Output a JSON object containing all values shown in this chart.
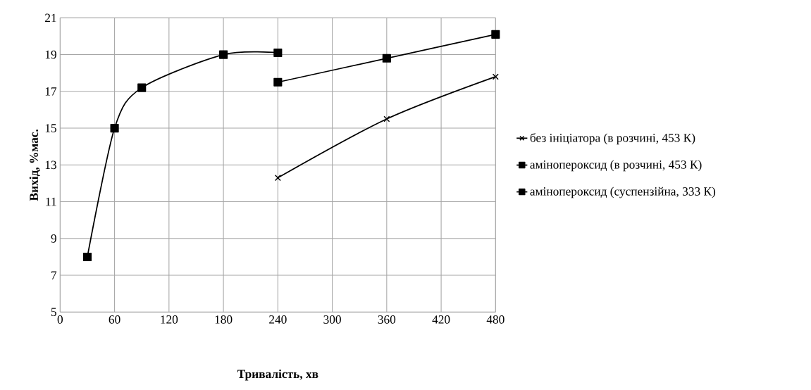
{
  "chart_data": {
    "type": "line",
    "xlabel": "Тривалість, хв",
    "ylabel": "Вихід, %мас.",
    "xlim": [
      0,
      480
    ],
    "xticks": [
      0,
      60,
      120,
      180,
      240,
      300,
      360,
      420,
      480
    ],
    "ylim": [
      5,
      21
    ],
    "yticks": [
      5,
      7,
      9,
      11,
      13,
      15,
      17,
      19,
      21
    ],
    "grid": true,
    "legend": "right",
    "series": [
      {
        "name": "без ініціатора (в розчині, 453 К)",
        "color": "#000000",
        "marker": "cross",
        "x": [
          240,
          360,
          480
        ],
        "values": [
          12.3,
          15.5,
          17.8
        ]
      },
      {
        "name": "амінопероксид (в розчині, 453 К)",
        "color": "#000000",
        "marker": "square",
        "x": [
          240,
          360,
          480
        ],
        "values": [
          17.5,
          18.8,
          20.1
        ]
      },
      {
        "name": "амінопероксид (суспензійна, 333 К)",
        "color": "#000000",
        "marker": "square",
        "x": [
          30,
          60,
          90,
          180,
          240
        ],
        "values": [
          8.0,
          15.0,
          17.2,
          19.0,
          19.1
        ]
      }
    ]
  }
}
